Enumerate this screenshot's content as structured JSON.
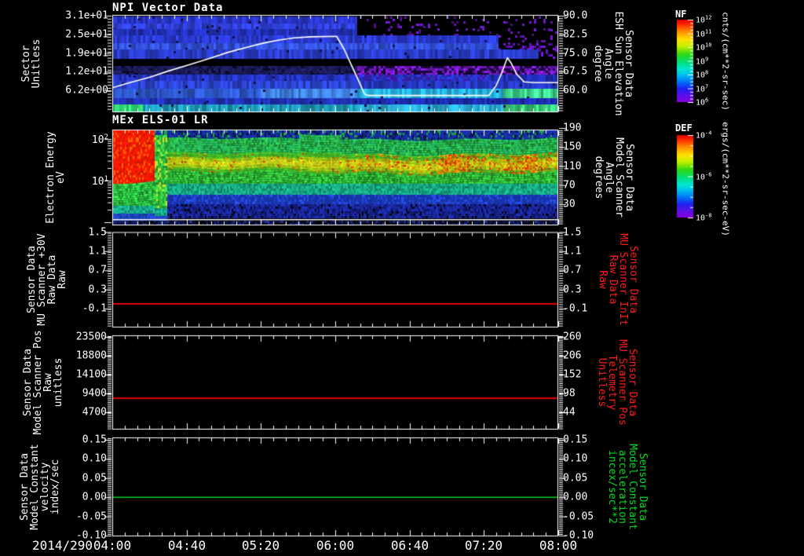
{
  "xaxis": {
    "date_label": "2014/290",
    "tick_labels": [
      "04:00",
      "04:40",
      "05:20",
      "06:00",
      "06:40",
      "07:20",
      "08:00"
    ]
  },
  "panels": [
    {
      "title": "NPI Vector Data",
      "left_label": [
        "Sector",
        "Unitless"
      ],
      "left_ticks": [
        "3.1e+01",
        "2.5e+01",
        "1.9e+01",
        "1.2e+01",
        "6.2e+00"
      ],
      "right_label": [
        "Sensor Data",
        "ESH Sun Elevation",
        "Angle",
        "degree"
      ],
      "right_ticks": [
        "90.0",
        "82.5",
        "75.0",
        "67.5",
        "60.0"
      ]
    },
    {
      "title": "MEx ELS-01 LR",
      "left_label": [
        "Electron Energy",
        "eV"
      ],
      "left_ticks": [
        {
          "base": "10",
          "exp": "2"
        },
        {
          "base": "10",
          "exp": "1"
        }
      ],
      "right_label": [
        "Sensor Data",
        "Model Scanner",
        "Angle",
        "degrees"
      ],
      "right_ticks": [
        "190",
        "150",
        "110",
        "70",
        "30"
      ]
    },
    {
      "left_label": [
        "Sensor Data",
        "MU Scanner +30V",
        "Raw Data",
        "Raw"
      ],
      "left_ticks": [
        "1.5",
        "1.1",
        "0.7",
        "0.3",
        "-0.1"
      ],
      "right_label": [
        "Sensor Data",
        "MU Scanner InIt",
        "Raw Data",
        "Raw"
      ],
      "right_ticks": [
        "1.5",
        "1.1",
        "0.7",
        "0.3",
        "-0.1"
      ]
    },
    {
      "left_label": [
        "Sensor Data",
        "Model Scanner Pos",
        "Raw",
        "unitless"
      ],
      "left_ticks": [
        "23500",
        "18800",
        "14100",
        "9400",
        "4700"
      ],
      "right_label": [
        "Sensor Data",
        "MU Scanner Pos",
        "Telemetry",
        "Unitless"
      ],
      "right_ticks": [
        "260",
        "206",
        "152",
        "98",
        "44"
      ]
    },
    {
      "left_label": [
        "Sensor Data",
        "Model Constant",
        "velocity",
        "index/sec"
      ],
      "left_ticks": [
        "0.15",
        "0.10",
        "0.05",
        "0.00",
        "-0.05",
        "-0.10"
      ],
      "right_label": [
        "Sensor Data",
        "Model Constant",
        "acceleration",
        "incex/sec**2"
      ],
      "right_ticks": [
        "0.15",
        "0.10",
        "0.05",
        "0.00",
        "-0.05",
        "-0.10"
      ]
    }
  ],
  "colorbars": [
    {
      "title": "NF",
      "units": "cnts/(cm**2-sr-sec)",
      "ticks": [
        {
          "base": "10",
          "exp": "12"
        },
        {
          "base": "10",
          "exp": "11"
        },
        {
          "base": "10",
          "exp": "10"
        },
        {
          "base": "10",
          "exp": "9"
        },
        {
          "base": "10",
          "exp": "8"
        },
        {
          "base": "10",
          "exp": "7"
        },
        {
          "base": "10",
          "exp": "6"
        }
      ]
    },
    {
      "title": "DEF",
      "units": "ergs/(cm**2-sr-sec-eV)",
      "ticks": [
        {
          "base": "10",
          "exp": "-4"
        },
        {
          "base": "10",
          "exp": "-6"
        },
        {
          "base": "10",
          "exp": "-8"
        }
      ]
    }
  ],
  "chart_data": [
    {
      "type": "heatmap",
      "panel": 1,
      "title": "NPI Vector Data",
      "ylabel": "Sector Unitless",
      "ytick_values": [
        31,
        24.8,
        18.6,
        12.4,
        6.2
      ],
      "x_range": [
        "04:00",
        "08:00"
      ],
      "grid": false,
      "colorbar": {
        "name": "NF",
        "units": "cnts/(cm**2-sr-sec)",
        "scale": "log",
        "tick_values": [
          "1e12",
          "1e11",
          "1e10",
          "1e9",
          "1e8",
          "1e7",
          "1e6"
        ]
      },
      "overlay_line": {
        "name": "ESH Sun Elevation Angle",
        "units": "degree",
        "color": "#ffffff",
        "right_axis_ticks": [
          90.0,
          82.5,
          75.0,
          67.5,
          60.0
        ],
        "points_min_deg": [
          [
            0,
            61
          ],
          [
            9,
            63
          ],
          [
            20,
            65.2
          ],
          [
            30,
            67.7
          ],
          [
            41,
            70.2
          ],
          [
            52,
            72.7
          ],
          [
            62,
            75.2
          ],
          [
            73,
            77.4
          ],
          [
            81,
            78.9
          ],
          [
            90,
            80.2
          ],
          [
            98,
            81.1
          ],
          [
            107,
            81.5
          ],
          [
            121,
            81.7
          ],
          [
            125,
            76.5
          ],
          [
            129,
            70
          ],
          [
            133,
            63.5
          ],
          [
            136,
            58.5
          ],
          [
            138,
            57.9
          ],
          [
            203,
            57.9
          ],
          [
            207,
            62
          ],
          [
            210,
            67
          ],
          [
            213,
            73.1
          ],
          [
            215,
            71
          ],
          [
            218,
            66.5
          ],
          [
            222,
            63.4
          ],
          [
            228,
            63.1
          ],
          [
            240,
            63.1
          ]
        ]
      },
      "features": [
        "blue horizontal sector bands",
        "black gap band near sector 15",
        "bright purple band below gap after 06:00",
        "bright cyan band near sector 7 after 06:00",
        "green band at lowest sectors",
        "top sectors go black with purple speckle after ~06:05"
      ]
    },
    {
      "type": "spectrogram",
      "panel": 2,
      "title": "MEx ELS-01 LR",
      "ylabel": "Electron Energy eV",
      "yscale": "log",
      "ytick_values": [
        100,
        10
      ],
      "x_range": [
        "04:00",
        "08:00"
      ],
      "right_axis": {
        "label": "Model Scanner Angle degrees",
        "tick_values": [
          190,
          150,
          110,
          70,
          30
        ]
      },
      "colorbar": {
        "name": "DEF",
        "units": "ergs/(cm**2-sr-sec-eV)",
        "scale": "log",
        "tick_values": [
          "1e-4",
          "1e-6",
          "1e-8"
        ]
      },
      "features": [
        "saturated red flux 20-150 eV from 04:00 to ~04:22",
        "steady yellow-green band near 20-50 eV afterwards",
        "orange-red patches intensify 06:00-07:40",
        "blue/dark flux below 10 eV",
        "thin white horizontal line near bottom"
      ]
    },
    {
      "type": "line",
      "panel": 3,
      "series": [
        {
          "name": "MU Scanner +30V Raw Data",
          "color": "#ff0000",
          "constant_value": 0.0
        }
      ],
      "ylim": [
        -0.5,
        1.5
      ],
      "ytick_values": [
        1.5,
        1.1,
        0.7,
        0.3,
        -0.1
      ],
      "x_range": [
        "04:00",
        "08:00"
      ]
    },
    {
      "type": "line",
      "panel": 4,
      "series": [
        {
          "name": "Model Scanner Pos Raw",
          "color": "#ff0000",
          "constant_value": 8200
        }
      ],
      "ylim": [
        1900,
        23500
      ],
      "ytick_values": [
        23500,
        18800,
        14100,
        9400,
        4700
      ],
      "right_ytick_values": [
        260,
        206,
        152,
        98,
        44
      ],
      "x_range": [
        "04:00",
        "08:00"
      ]
    },
    {
      "type": "line",
      "panel": 5,
      "series": [
        {
          "name": "Model Constant velocity",
          "color": "#00cc22",
          "constant_value": 0.0
        }
      ],
      "ylim": [
        -0.113,
        0.156
      ],
      "ytick_values": [
        0.15,
        0.1,
        0.05,
        0.0,
        -0.05,
        -0.1
      ],
      "x_range": [
        "04:00",
        "08:00"
      ]
    }
  ]
}
